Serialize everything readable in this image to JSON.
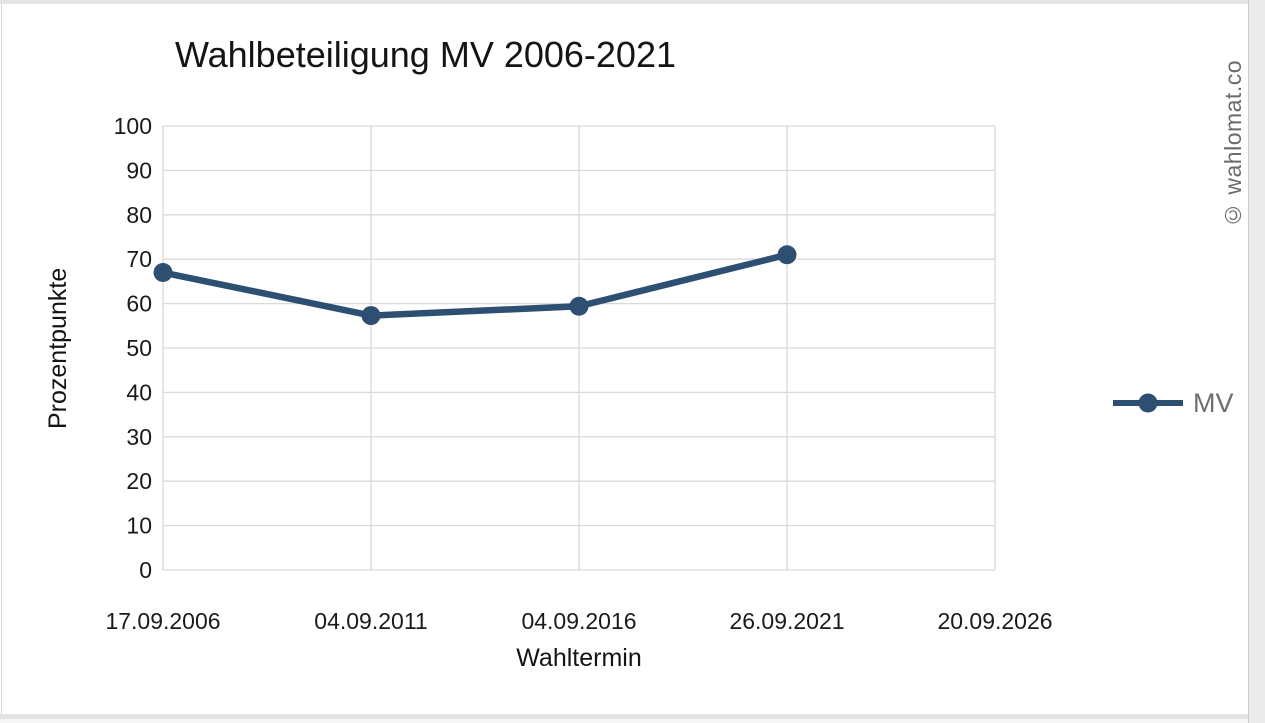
{
  "watermark": "© wahlomat.co",
  "chart_data": {
    "type": "line",
    "title": "Wahlbeteiligung MV 2006-2021",
    "xlabel": "Wahltermin",
    "ylabel": "Prozentpunkte",
    "categories": [
      "17.09.2006",
      "04.09.2011",
      "04.09.2016",
      "26.09.2021",
      "20.09.2026"
    ],
    "series": [
      {
        "name": "MV",
        "color": "#2d4f72",
        "values": [
          67,
          57.3,
          59.4,
          71,
          null
        ]
      }
    ],
    "ylim": [
      0,
      100
    ],
    "ytick_step": 10,
    "yticks": [
      0,
      10,
      20,
      30,
      40,
      50,
      60,
      70,
      80,
      90,
      100
    ],
    "grid": true,
    "legend_position": "right",
    "colors": {
      "gridline": "#d9d9d9",
      "axis_text": "#1a1a1a",
      "legend_text": "#6e6e6e",
      "watermark_text": "#6b6b6b",
      "frame": "#e4e4e4"
    }
  }
}
